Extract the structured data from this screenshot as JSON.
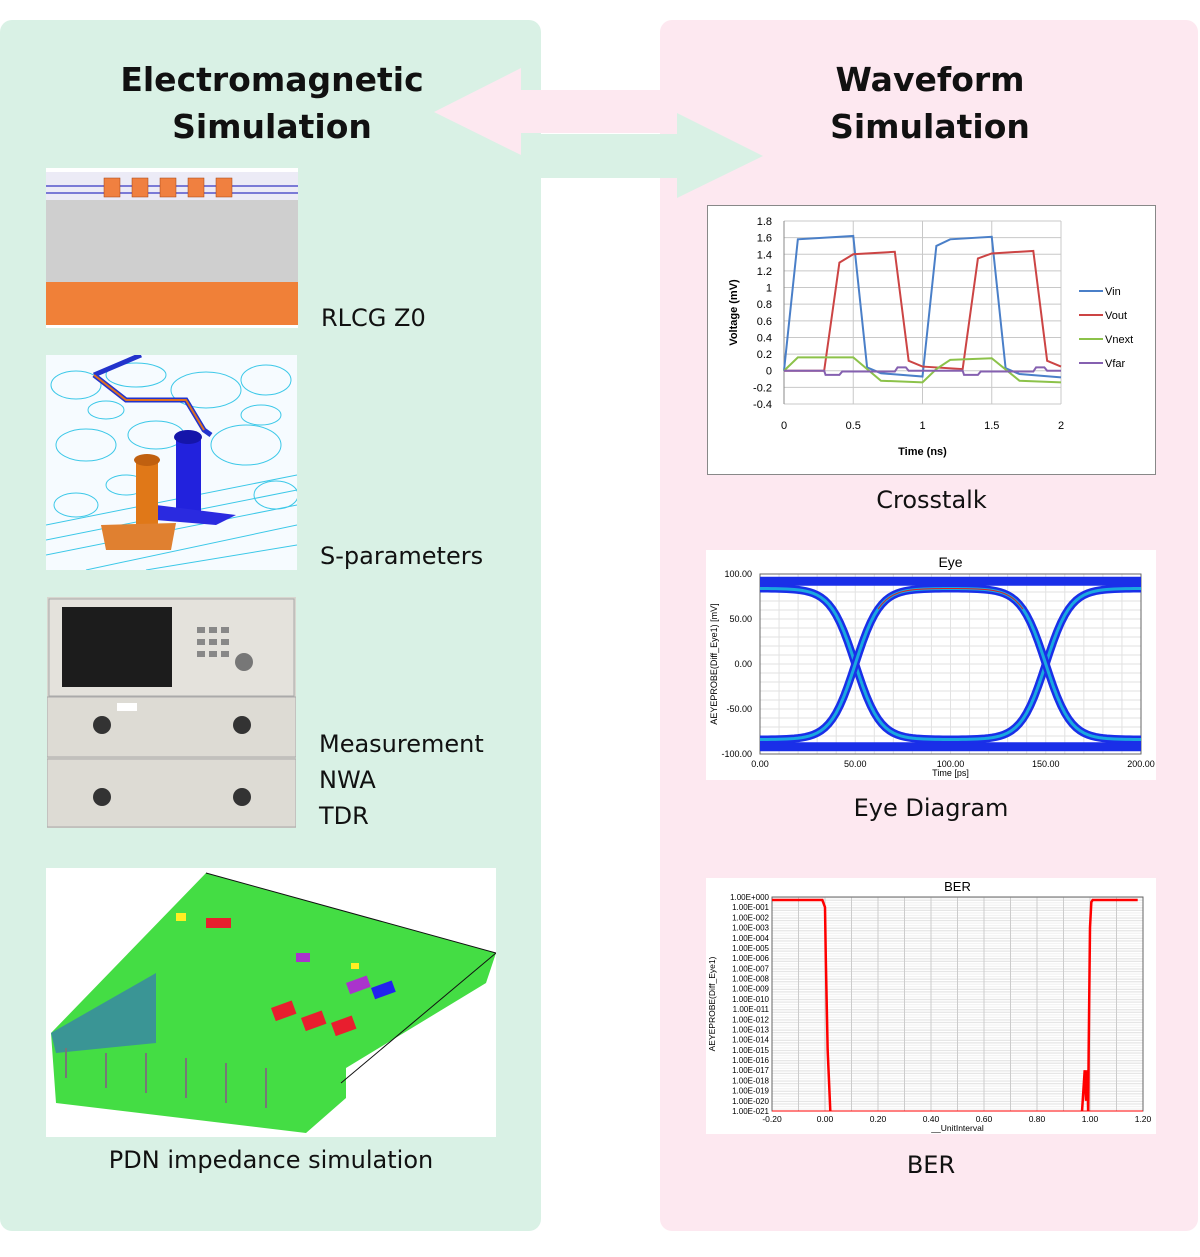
{
  "left_panel": {
    "title_line1": "Electromagnetic",
    "title_line2": "Simulation",
    "items": [
      {
        "label": "RLCG Z0"
      },
      {
        "label": "S-parameters"
      },
      {
        "label_lines": [
          "Measurement",
          "NWA",
          "TDR"
        ]
      },
      {
        "label": "PDN impedance simulation"
      }
    ]
  },
  "right_panel": {
    "title_line1": "Waveform",
    "title_line2": "Simulation",
    "captions": [
      "Crosstalk",
      "Eye Diagram",
      "BER"
    ]
  },
  "colors": {
    "green_panel": "#d9f1e5",
    "pink_panel": "#fde8f0"
  },
  "chart_data": [
    {
      "type": "line",
      "title": "",
      "xlabel": "Time (ns)",
      "ylabel": "Voltage (mV)",
      "xlim": [
        0,
        2
      ],
      "ylim": [
        -0.4,
        1.8
      ],
      "xticks": [
        "0",
        "0.5",
        "1",
        "1.5",
        "2"
      ],
      "yticks": [
        "1.8",
        "1.6",
        "1.4",
        "1.2",
        "1",
        "0.8",
        "0.6",
        "0.4",
        "0.2",
        "0",
        "-0.2",
        "-0.4"
      ],
      "grid": true,
      "legend_position": "right",
      "series": [
        {
          "name": "Vin",
          "color": "#4a7fc8",
          "points": [
            [
              0,
              0
            ],
            [
              0.1,
              1.58
            ],
            [
              0.5,
              1.62
            ],
            [
              0.6,
              0.04
            ],
            [
              0.7,
              -0.03
            ],
            [
              1.0,
              -0.07
            ],
            [
              1.1,
              1.5
            ],
            [
              1.2,
              1.58
            ],
            [
              1.5,
              1.61
            ],
            [
              1.6,
              0.03
            ],
            [
              1.7,
              -0.04
            ],
            [
              2,
              -0.08
            ]
          ]
        },
        {
          "name": "Vout",
          "color": "#cc4444",
          "points": [
            [
              0,
              0
            ],
            [
              0.29,
              0
            ],
            [
              0.4,
              1.3
            ],
            [
              0.5,
              1.4
            ],
            [
              0.8,
              1.43
            ],
            [
              0.9,
              0.12
            ],
            [
              1.0,
              0.05
            ],
            [
              1.29,
              0.02
            ],
            [
              1.4,
              1.35
            ],
            [
              1.5,
              1.41
            ],
            [
              1.8,
              1.44
            ],
            [
              1.9,
              0.12
            ],
            [
              2,
              0.05
            ]
          ]
        },
        {
          "name": "Vnext",
          "color": "#8cc24a",
          "points": [
            [
              0,
              0
            ],
            [
              0.1,
              0.16
            ],
            [
              0.5,
              0.16
            ],
            [
              0.7,
              -0.12
            ],
            [
              1,
              -0.14
            ],
            [
              1.1,
              0.02
            ],
            [
              1.2,
              0.13
            ],
            [
              1.5,
              0.15
            ],
            [
              1.7,
              -0.12
            ],
            [
              2,
              -0.14
            ]
          ]
        },
        {
          "name": "Vfar",
          "color": "#8560b0",
          "points": [
            [
              0,
              0
            ],
            [
              0.29,
              0
            ],
            [
              0.3,
              -0.05
            ],
            [
              0.4,
              -0.05
            ],
            [
              0.42,
              -0.01
            ],
            [
              0.8,
              -0.01
            ],
            [
              0.82,
              0.04
            ],
            [
              0.88,
              0.04
            ],
            [
              0.9,
              0
            ],
            [
              1.29,
              0
            ],
            [
              1.3,
              -0.05
            ],
            [
              1.4,
              -0.05
            ],
            [
              1.42,
              -0.01
            ],
            [
              1.8,
              -0.01
            ],
            [
              1.82,
              0.04
            ],
            [
              1.88,
              0.04
            ],
            [
              1.9,
              0
            ],
            [
              2,
              0
            ]
          ]
        }
      ]
    },
    {
      "type": "line",
      "title": "Eye",
      "xlabel": "Time [ps]",
      "ylabel": "AEYEPROBE(Diff_Eye1) [mV]",
      "xlim": [
        0,
        200
      ],
      "ylim": [
        -100,
        100
      ],
      "xticks": [
        "0.00",
        "50.00",
        "100.00",
        "150.00",
        "200.00"
      ],
      "yticks": [
        "100.00",
        "50.00",
        "0.00",
        "-50.00",
        "-100.00"
      ],
      "grid": true,
      "rails_mV": [
        92,
        -92
      ],
      "settled_levels_mV": [
        84,
        -84
      ],
      "crossings_ps": [
        50,
        150
      ]
    },
    {
      "type": "line",
      "title": "BER",
      "xlabel": "__UnitInterval",
      "ylabel": "AEYEPROBE(Diff_Eye1)",
      "xlim": [
        -0.2,
        1.2
      ],
      "ylim_log10": [
        -21,
        0
      ],
      "xticks": [
        "-0.20",
        "0.00",
        "0.20",
        "0.40",
        "0.60",
        "0.80",
        "1.00",
        "1.20"
      ],
      "yticks": [
        "1.00E+000",
        "1.00E-001",
        "1.00E-002",
        "1.00E-003",
        "1.00E-004",
        "1.00E-005",
        "1.00E-006",
        "1.00E-007",
        "1.00E-008",
        "1.00E-009",
        "1.00E-010",
        "1.00E-011",
        "1.00E-012",
        "1.00E-013",
        "1.00E-014",
        "1.00E-015",
        "1.00E-016",
        "1.00E-017",
        "1.00E-018",
        "1.00E-019",
        "1.00E-020",
        "1.00E-021"
      ],
      "series": [
        {
          "name": "BER",
          "color": "#ff0000",
          "points_log10": [
            [
              -0.2,
              -0.3
            ],
            [
              -0.01,
              -0.3
            ],
            [
              0,
              -1
            ],
            [
              0.003,
              -6
            ],
            [
              0.01,
              -15
            ],
            [
              0.02,
              -21
            ]
          ]
        },
        {
          "name": "BER",
          "color": "#ff0000",
          "points_log10": [
            [
              0.97,
              -21
            ],
            [
              0.98,
              -17
            ],
            [
              0.985,
              -20
            ],
            [
              0.99,
              -17
            ],
            [
              0.993,
              -21
            ],
            [
              0.995,
              -15
            ],
            [
              1.0,
              -3
            ],
            [
              1.005,
              -0.5
            ],
            [
              1.01,
              -0.3
            ],
            [
              1.18,
              -0.3
            ]
          ]
        }
      ]
    }
  ]
}
